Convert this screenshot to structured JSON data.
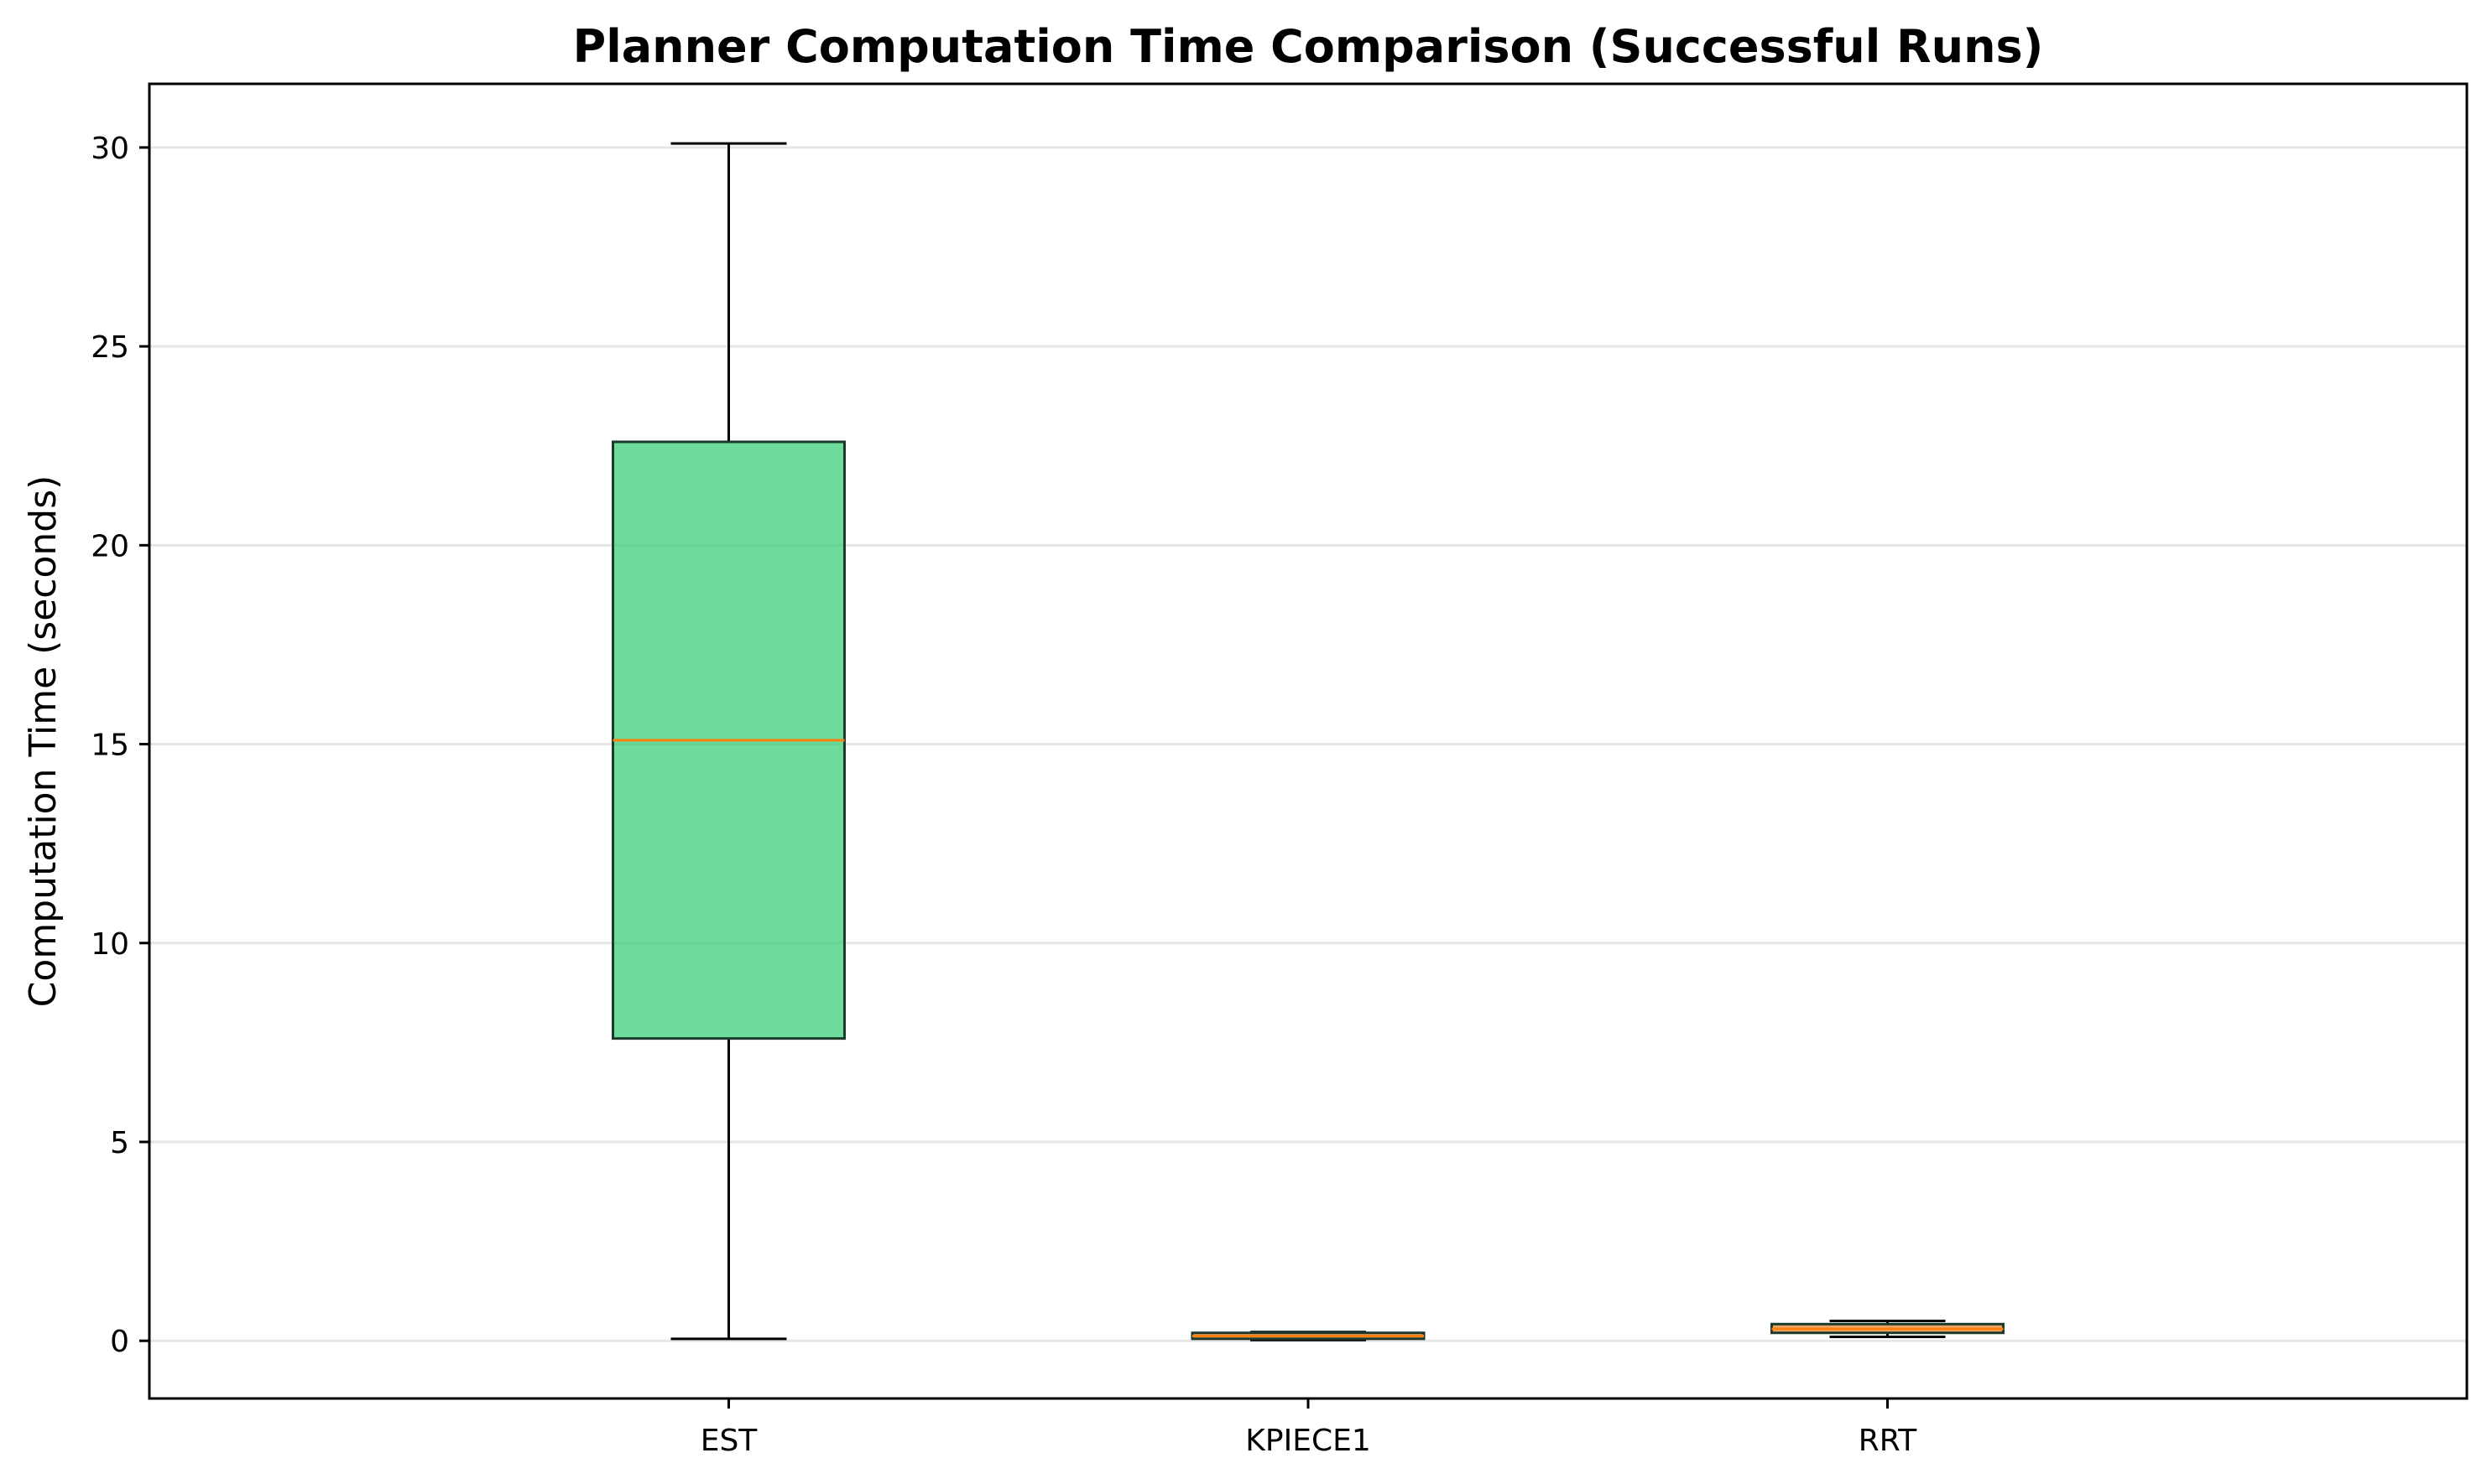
{
  "chart_data": {
    "type": "boxplot",
    "title": "Planner Computation Time Comparison (Successful Runs)",
    "xlabel": "",
    "ylabel": "Computation Time (seconds)",
    "ylim": [
      -1.45,
      31.6
    ],
    "yticks": [
      0,
      5,
      10,
      15,
      20,
      25,
      30
    ],
    "grid": "horizontal",
    "legend": "none",
    "categories": [
      "EST",
      "KPIECE1",
      "RRT"
    ],
    "boxes": [
      {
        "name": "EST",
        "whisker_low": 0.05,
        "q1": 7.6,
        "median": 15.1,
        "q3": 22.6,
        "whisker_high": 30.1,
        "color": "#2ecc71"
      },
      {
        "name": "KPIECE1",
        "whisker_low": 0.02,
        "q1": 0.05,
        "median": 0.12,
        "q3": 0.2,
        "whisker_high": 0.22,
        "color": "#e67e22"
      },
      {
        "name": "RRT",
        "whisker_low": 0.1,
        "q1": 0.2,
        "median": 0.3,
        "q3": 0.42,
        "whisker_high": 0.5,
        "color": "#e67e22"
      }
    ],
    "median_color": "#ff7f0e",
    "grid_color": "#e6e6e6"
  }
}
